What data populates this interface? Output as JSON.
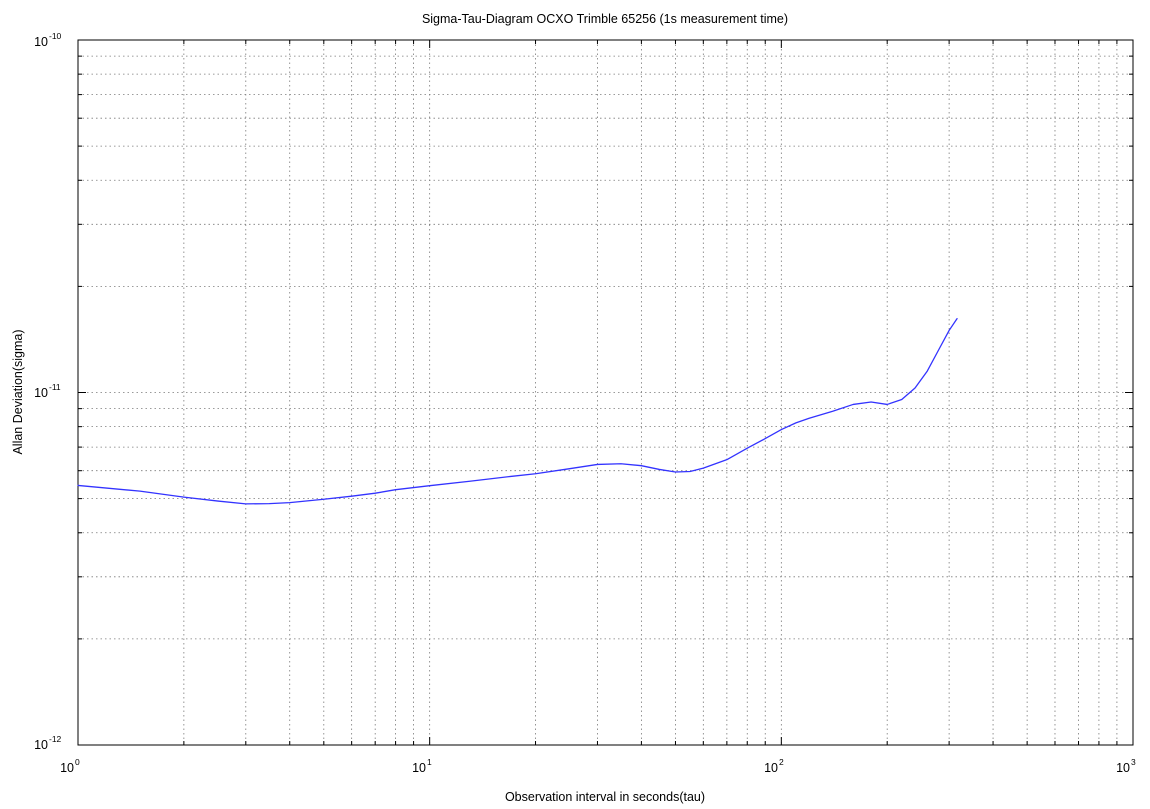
{
  "chart_data": {
    "type": "line",
    "title": "Sigma-Tau-Diagram OCXO Trimble 65256 (1s measurement time)",
    "xlabel": "Observation interval in seconds(tau)",
    "ylabel": "Allan Deviation(sigma)",
    "xscale": "log",
    "yscale": "log",
    "xlim": [
      1,
      1000
    ],
    "ylim": [
      1e-12,
      1e-10
    ],
    "grid": true,
    "x_ticks": [
      {
        "base": "10",
        "exp": "0"
      },
      {
        "base": "10",
        "exp": "1"
      },
      {
        "base": "10",
        "exp": "2"
      },
      {
        "base": "10",
        "exp": "3"
      }
    ],
    "y_ticks": [
      {
        "base": "10",
        "exp": "-12"
      },
      {
        "base": "10",
        "exp": "-11"
      },
      {
        "base": "10",
        "exp": "-10"
      }
    ],
    "line_color": "#3333ff",
    "series": [
      {
        "x": [
          1,
          1.5,
          2,
          2.5,
          3,
          3.5,
          4,
          5,
          6,
          7,
          8,
          10,
          13,
          17,
          20,
          25,
          30,
          35,
          40,
          45,
          50,
          55,
          60,
          70,
          80,
          90,
          100,
          110,
          120,
          140,
          160,
          180,
          200,
          220,
          240,
          260,
          280,
          300,
          316
        ],
        "y": [
          5.45e-12,
          5.25e-12,
          5.05e-12,
          4.92e-12,
          4.83e-12,
          4.84e-12,
          4.87e-12,
          4.98e-12,
          5.08e-12,
          5.18e-12,
          5.3e-12,
          5.44e-12,
          5.6e-12,
          5.78e-12,
          5.88e-12,
          6.08e-12,
          6.25e-12,
          6.28e-12,
          6.2e-12,
          6.05e-12,
          5.95e-12,
          5.97e-12,
          6.1e-12,
          6.45e-12,
          6.95e-12,
          7.4e-12,
          7.85e-12,
          8.2e-12,
          8.45e-12,
          8.85e-12,
          9.25e-12,
          9.4e-12,
          9.25e-12,
          9.55e-12,
          1.03e-11,
          1.15e-11,
          1.32e-11,
          1.5e-11,
          1.62e-11
        ]
      }
    ]
  }
}
